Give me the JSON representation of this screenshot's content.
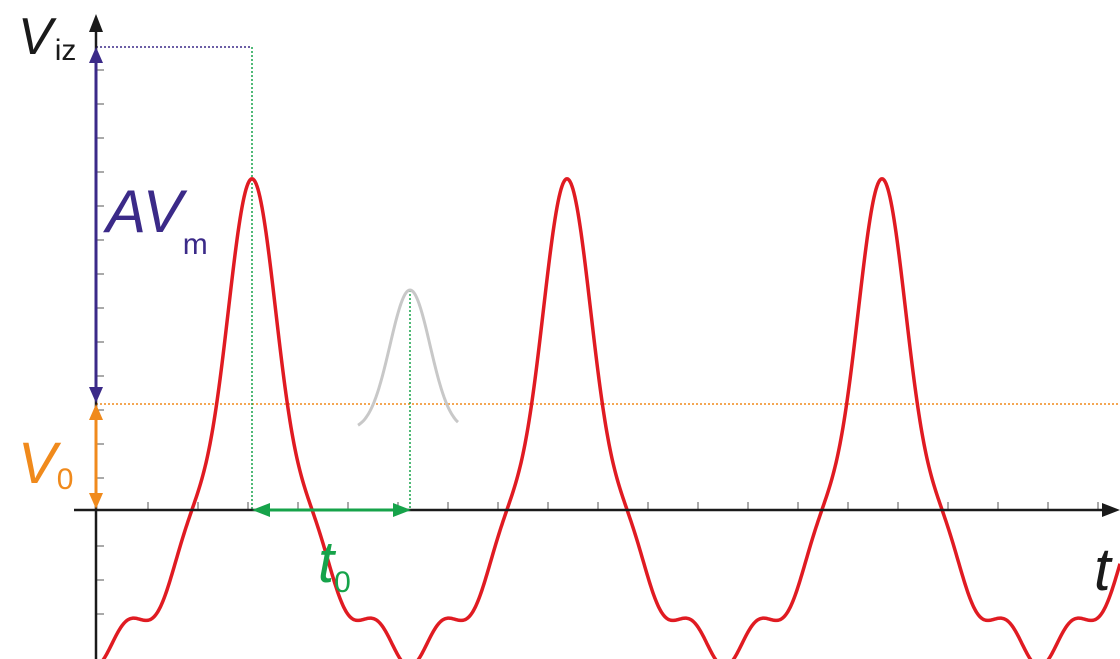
{
  "labels": {
    "y_axis": "V",
    "y_axis_sub": "iz",
    "x_axis": "t",
    "amplitude": "AV",
    "amplitude_sub": "m",
    "offset": "V",
    "offset_sub": "0",
    "shift": "t",
    "shift_sub": "0"
  },
  "colors": {
    "axis": "#1a1a1a",
    "signal": "#e01b22",
    "amplitude": "#3b2a88",
    "offset": "#f08a1c",
    "shift": "#16a34a",
    "ghost": "#c8c8c8"
  }
}
